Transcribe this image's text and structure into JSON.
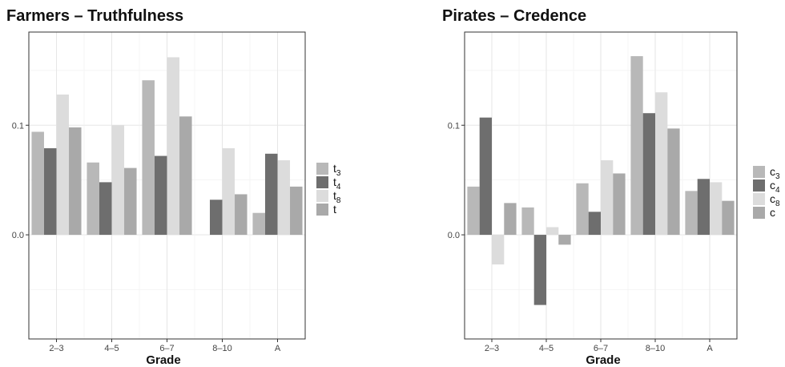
{
  "colors": [
    "#b8b8b8",
    "#6e6e6e",
    "#dcdcdc",
    "#a9a9a9"
  ],
  "chart_data": [
    {
      "type": "bar",
      "title": "Farmers – Truthfulness",
      "xlabel": "Grade",
      "ylabel": "",
      "categories": [
        "2–3",
        "4–5",
        "6–7",
        "8–10",
        "A"
      ],
      "ylim": [
        -0.095,
        0.185
      ],
      "yticks": [
        0.0,
        0.1
      ],
      "ytick_labels": [
        "0.0",
        "0.1"
      ],
      "grid": true,
      "legend_position": "right",
      "series": [
        {
          "name": "t",
          "sub": "3",
          "values": [
            0.094,
            0.066,
            0.141,
            0.0,
            0.02
          ]
        },
        {
          "name": "t",
          "sub": "4",
          "values": [
            0.079,
            0.048,
            0.072,
            0.032,
            0.074
          ]
        },
        {
          "name": "t",
          "sub": "8",
          "values": [
            0.128,
            0.1,
            0.162,
            0.079,
            0.068
          ]
        },
        {
          "name": "t",
          "sub": "",
          "values": [
            0.098,
            0.061,
            0.108,
            0.037,
            0.044
          ]
        }
      ]
    },
    {
      "type": "bar",
      "title": "Pirates – Credence",
      "xlabel": "Grade",
      "ylabel": "",
      "categories": [
        "2–3",
        "4–5",
        "6–7",
        "8–10",
        "A"
      ],
      "ylim": [
        -0.095,
        0.185
      ],
      "yticks": [
        0.0,
        0.1
      ],
      "ytick_labels": [
        "0.0",
        "0.1"
      ],
      "grid": true,
      "legend_position": "right",
      "series": [
        {
          "name": "c",
          "sub": "3",
          "values": [
            0.044,
            0.025,
            0.047,
            0.163,
            0.04
          ]
        },
        {
          "name": "c",
          "sub": "4",
          "values": [
            0.107,
            -0.064,
            0.021,
            0.111,
            0.051
          ]
        },
        {
          "name": "c",
          "sub": "8",
          "values": [
            -0.027,
            0.007,
            0.068,
            0.13,
            0.048
          ]
        },
        {
          "name": "c",
          "sub": "",
          "values": [
            0.029,
            -0.009,
            0.056,
            0.097,
            0.031
          ]
        }
      ]
    }
  ]
}
